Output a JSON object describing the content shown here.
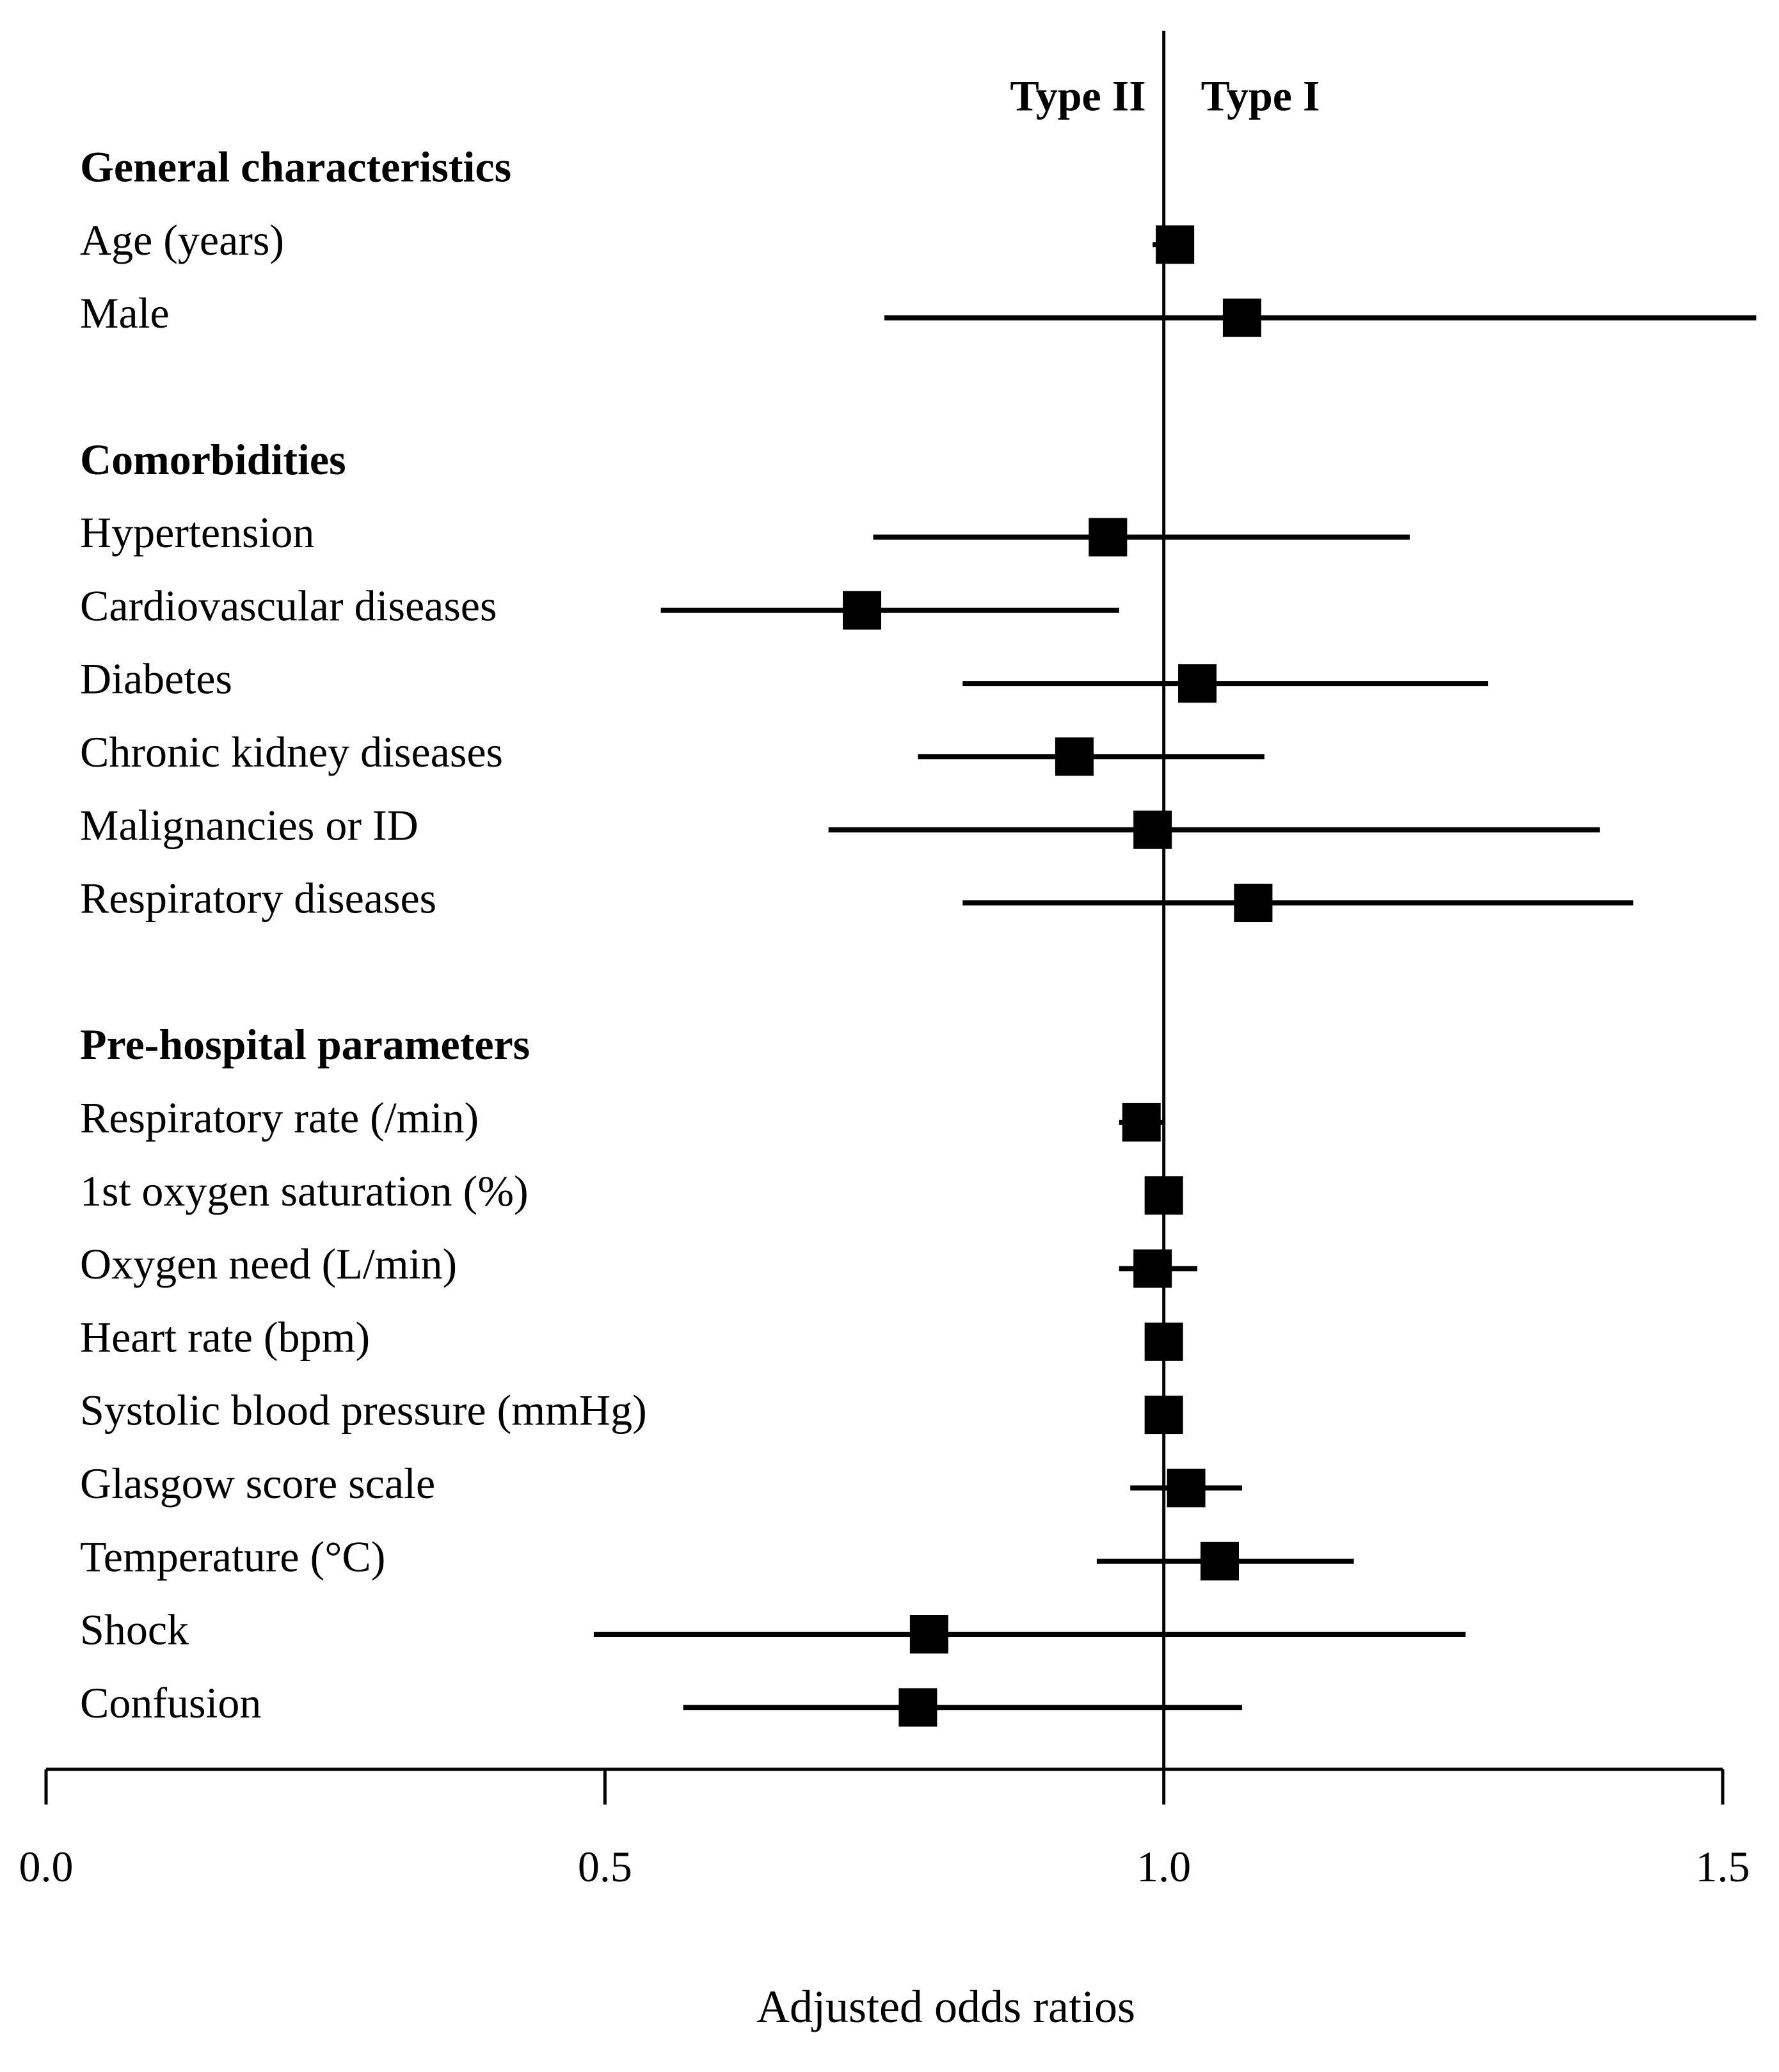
{
  "chart_data": {
    "type": "forest",
    "xlabel": "Adjusted odds ratios",
    "xlim": [
      0.0,
      1.5
    ],
    "xticks": [
      0.0,
      0.5,
      1.0,
      1.5
    ],
    "xtick_labels": [
      "0.0",
      "0.5",
      "1.0",
      "1.5"
    ],
    "reference_line": 1.0,
    "side_labels": {
      "left": "Type II",
      "right": "Type I"
    },
    "sections": [
      {
        "title": "General characteristics",
        "rows": [
          {
            "label": "Age (years)",
            "or": 1.01,
            "ci_low": 0.99,
            "ci_high": 1.02
          },
          {
            "label": "Male",
            "or": 1.07,
            "ci_low": 0.75,
            "ci_high": 1.53
          }
        ]
      },
      {
        "title": "Comorbidities",
        "rows": [
          {
            "label": "Hypertension",
            "or": 0.95,
            "ci_low": 0.74,
            "ci_high": 1.22
          },
          {
            "label": "Cardiovascular diseases",
            "or": 0.73,
            "ci_low": 0.55,
            "ci_high": 0.96
          },
          {
            "label": "Diabetes",
            "or": 1.03,
            "ci_low": 0.82,
            "ci_high": 1.29
          },
          {
            "label": "Chronic kidney diseases",
            "or": 0.92,
            "ci_low": 0.78,
            "ci_high": 1.09
          },
          {
            "label": "Malignancies or ID",
            "or": 0.99,
            "ci_low": 0.7,
            "ci_high": 1.39
          },
          {
            "label": "Respiratory diseases",
            "or": 1.08,
            "ci_low": 0.82,
            "ci_high": 1.42
          }
        ]
      },
      {
        "title": "Pre-hospital parameters",
        "rows": [
          {
            "label": "Respiratory rate (/min)",
            "or": 0.98,
            "ci_low": 0.96,
            "ci_high": 1.0
          },
          {
            "label": "1st oxygen saturation (%)",
            "or": 1.0,
            "ci_low": 0.99,
            "ci_high": 1.01
          },
          {
            "label": "Oxygen need (L/min)",
            "or": 0.99,
            "ci_low": 0.96,
            "ci_high": 1.03
          },
          {
            "label": "Heart rate (bpm)",
            "or": 1.0,
            "ci_low": 0.995,
            "ci_high": 1.005
          },
          {
            "label": "Systolic blood pressure (mmHg)",
            "or": 1.0,
            "ci_low": 0.995,
            "ci_high": 1.005
          },
          {
            "label": "Glasgow score scale",
            "or": 1.02,
            "ci_low": 0.97,
            "ci_high": 1.07
          },
          {
            "label": "Temperature (°C)",
            "or": 1.05,
            "ci_low": 0.94,
            "ci_high": 1.17
          },
          {
            "label": "Shock",
            "or": 0.79,
            "ci_low": 0.49,
            "ci_high": 1.27
          },
          {
            "label": "Confusion",
            "or": 0.78,
            "ci_low": 0.57,
            "ci_high": 1.07
          }
        ]
      }
    ]
  }
}
